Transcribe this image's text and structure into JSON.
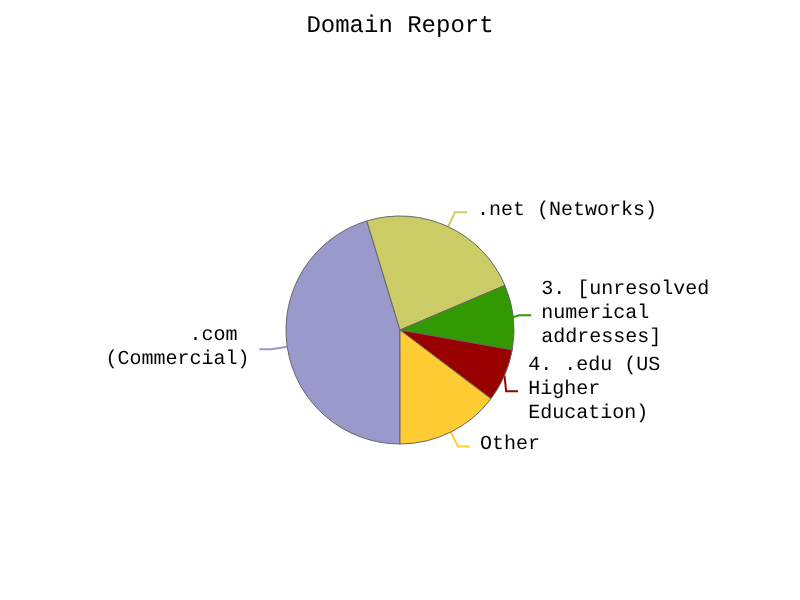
{
  "chart_data": {
    "type": "pie",
    "title": "Domain Report",
    "categories": [
      ".com (Commercial)",
      ".net (Networks)",
      "3. [unresolved numerical addresses]",
      "4. .edu (US Higher Education)",
      "Other"
    ],
    "values": [
      45.3,
      23.3,
      9.2,
      7.5,
      14.7
    ],
    "colors": [
      "#9999cc",
      "#cccc66",
      "#339900",
      "#990000",
      "#ffcc33"
    ]
  }
}
